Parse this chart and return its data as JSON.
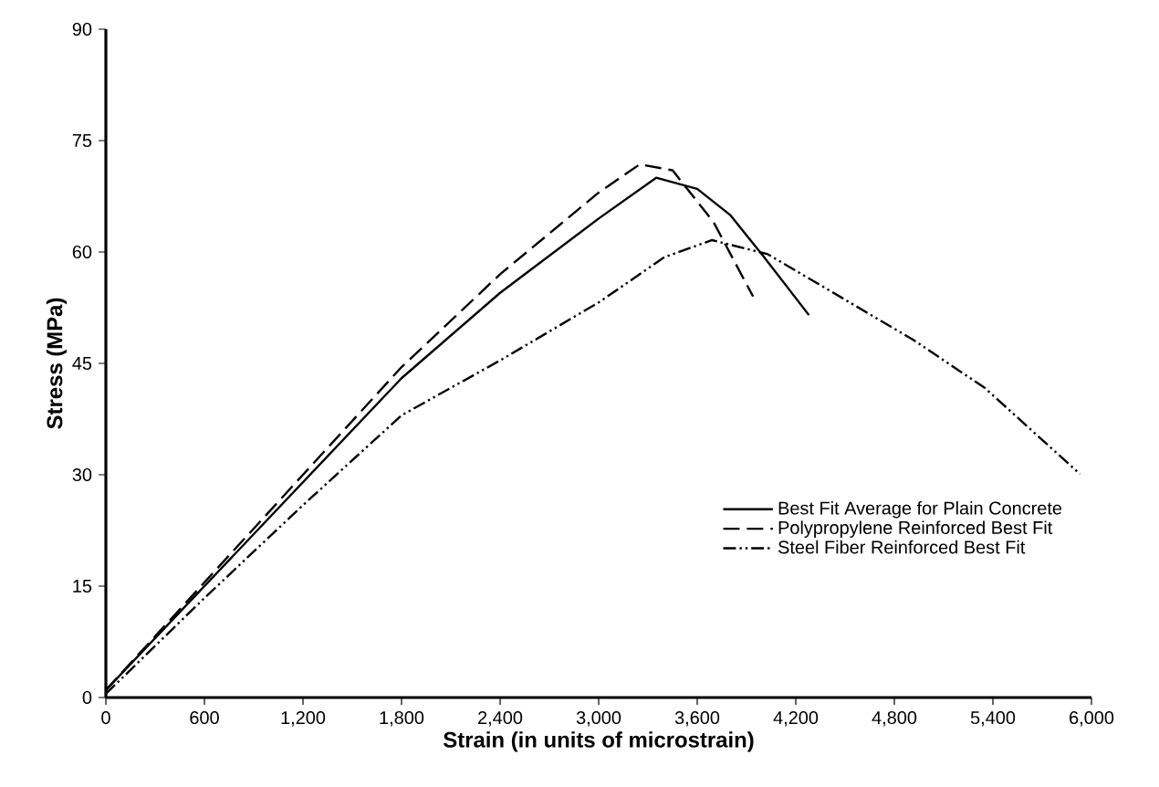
{
  "chart_data": {
    "type": "line",
    "xlabel": "Strain (in units of microstrain)",
    "ylabel": "Stress (MPa)",
    "xlim": [
      0,
      6000
    ],
    "ylim": [
      0,
      90
    ],
    "xticks": [
      0,
      600,
      {
        "value": 1200,
        "label": "1,200"
      },
      {
        "value": 1800,
        "label": "1,800"
      },
      {
        "value": 2400,
        "label": "2,400"
      },
      {
        "value": 3000,
        "label": "3,000"
      },
      {
        "value": 3600,
        "label": "3,600"
      },
      {
        "value": 4200,
        "label": "4,200"
      },
      {
        "value": 4800,
        "label": "4,800"
      },
      {
        "value": 5400,
        "label": "5,400"
      },
      {
        "value": 6000,
        "label": "6,000"
      }
    ],
    "yticks": [
      0,
      15,
      30,
      45,
      60,
      75,
      90
    ],
    "legend": "bottom right",
    "grid": false,
    "marker": "none",
    "series": [
      {
        "name": "Best Fit Average for Plain Concrete",
        "color": "#000000",
        "line_style": "solid",
        "x": [
          0,
          600,
          1200,
          1800,
          2400,
          3000,
          3350,
          3600,
          3800,
          4000,
          4280
        ],
        "values": [
          1,
          15,
          29,
          43,
          54.5,
          64.5,
          70,
          68.5,
          65,
          59.5,
          51.5
        ]
      },
      {
        "name": "Polypropylene Reinforced Best Fit",
        "color": "#000000",
        "line_style": "dashed",
        "x": [
          0,
          600,
          1200,
          1800,
          2400,
          3000,
          3250,
          3450,
          3700,
          3940
        ],
        "values": [
          1,
          15.5,
          30,
          44.5,
          57,
          68,
          71.8,
          71,
          64,
          54
        ]
      },
      {
        "name": "Steel Fiber Reinforced Best Fit",
        "color": "#000000",
        "line_style": "dashdotdotted",
        "x": [
          0,
          600,
          1200,
          1800,
          2400,
          3000,
          3400,
          3690,
          4030,
          4920,
          5350,
          5930
        ],
        "values": [
          0.5,
          13.4,
          25.9,
          38,
          45.4,
          53.2,
          59.3,
          61.6,
          59.7,
          48.1,
          41.7,
          30.1
        ]
      }
    ]
  }
}
